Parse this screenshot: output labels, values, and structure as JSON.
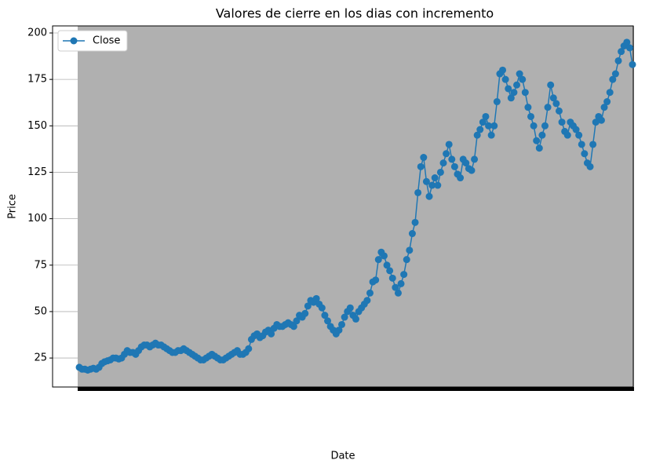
{
  "chart_data": {
    "type": "line",
    "title": "Valores de cierre en los dias con incremento",
    "x_label": "Date",
    "y_label": "Price",
    "categories": [
      null,
      null,
      null,
      null,
      null,
      null,
      null,
      null,
      null,
      null,
      null,
      null,
      null,
      null,
      null,
      null,
      null,
      null,
      null,
      null,
      null,
      null,
      null,
      null,
      null,
      null,
      null,
      null,
      null,
      null,
      null,
      null,
      null,
      null,
      null,
      null,
      null,
      null,
      null,
      null,
      null,
      null,
      null,
      null,
      null,
      null,
      null,
      null,
      null,
      null,
      null,
      null,
      null,
      null,
      null,
      null,
      null,
      null,
      null,
      null,
      null,
      null,
      null,
      null,
      null,
      null,
      null,
      null,
      null,
      null,
      null,
      null,
      null,
      null,
      null,
      null,
      null,
      null,
      null,
      null,
      null,
      null,
      null,
      null,
      null,
      null,
      null,
      null,
      null,
      null,
      null,
      null,
      null,
      null,
      null,
      null,
      null,
      null,
      null,
      null,
      null,
      null,
      null,
      null,
      null,
      null,
      null,
      null,
      null,
      null,
      null,
      null,
      null,
      null,
      null,
      null,
      null,
      null,
      null,
      null,
      null,
      null,
      null,
      null,
      null,
      null,
      null,
      null,
      null,
      null,
      null,
      null,
      null,
      null,
      null,
      null,
      null,
      null,
      null,
      null,
      null,
      null,
      null,
      null,
      null,
      null,
      null,
      null,
      null,
      null,
      null,
      null,
      null,
      null,
      null,
      null,
      null,
      null,
      null,
      null,
      null,
      null,
      null,
      null,
      null,
      null,
      null,
      null,
      null,
      null,
      null,
      null,
      null,
      null,
      null,
      null,
      null,
      null,
      null,
      null,
      null,
      null,
      null,
      null,
      null,
      null,
      null,
      null,
      null,
      null,
      null,
      null,
      null,
      null,
      null,
      null,
      null
    ],
    "series": [
      {
        "name": "Close",
        "color": "#1f77b4",
        "values": [
          20,
          19,
          19,
          18.5,
          19,
          19.5,
          19,
          20,
          22,
          23,
          23.5,
          24,
          25,
          25,
          24.5,
          25,
          27,
          29,
          28,
          28,
          27,
          29,
          31,
          32,
          32,
          31,
          32,
          33,
          32,
          32,
          31,
          30,
          29,
          28,
          28,
          29,
          29,
          30,
          29,
          28,
          27,
          26,
          25,
          24,
          24,
          25,
          26,
          27,
          26,
          25,
          24,
          24,
          25,
          26,
          27,
          28,
          29,
          27,
          27,
          28,
          30,
          35,
          37,
          38,
          36,
          37,
          39,
          40,
          38,
          41,
          43,
          42,
          42,
          43,
          44,
          43,
          42,
          45,
          48,
          47,
          49,
          53,
          56,
          55,
          57,
          54,
          52,
          48,
          45,
          42,
          40,
          38,
          40,
          43,
          47,
          50,
          52,
          48,
          46,
          50,
          52,
          54,
          56,
          60,
          66,
          67,
          78,
          82,
          80,
          75,
          72,
          68,
          63,
          60,
          65,
          70,
          78,
          83,
          92,
          98,
          114,
          128,
          133,
          120,
          112,
          118,
          122,
          118,
          125,
          130,
          135,
          140,
          132,
          128,
          124,
          122,
          132,
          130,
          127,
          126,
          132,
          145,
          148,
          152,
          155,
          150,
          145,
          150,
          163,
          178,
          180,
          175,
          170,
          165,
          168,
          172,
          178,
          175,
          168,
          160,
          155,
          150,
          142,
          138,
          145,
          150,
          160,
          172,
          165,
          162,
          158,
          152,
          147,
          145,
          152,
          150,
          148,
          145,
          140,
          135,
          130,
          128,
          140,
          152,
          155,
          153,
          160,
          163,
          168,
          175,
          178,
          185,
          190,
          193,
          195,
          192,
          183
        ]
      }
    ],
    "ylim": [
      9.4,
      203.8
    ],
    "yticks": [
      25,
      50,
      75,
      100,
      125,
      150,
      175,
      200
    ],
    "grid": true,
    "legend": "upper left"
  }
}
